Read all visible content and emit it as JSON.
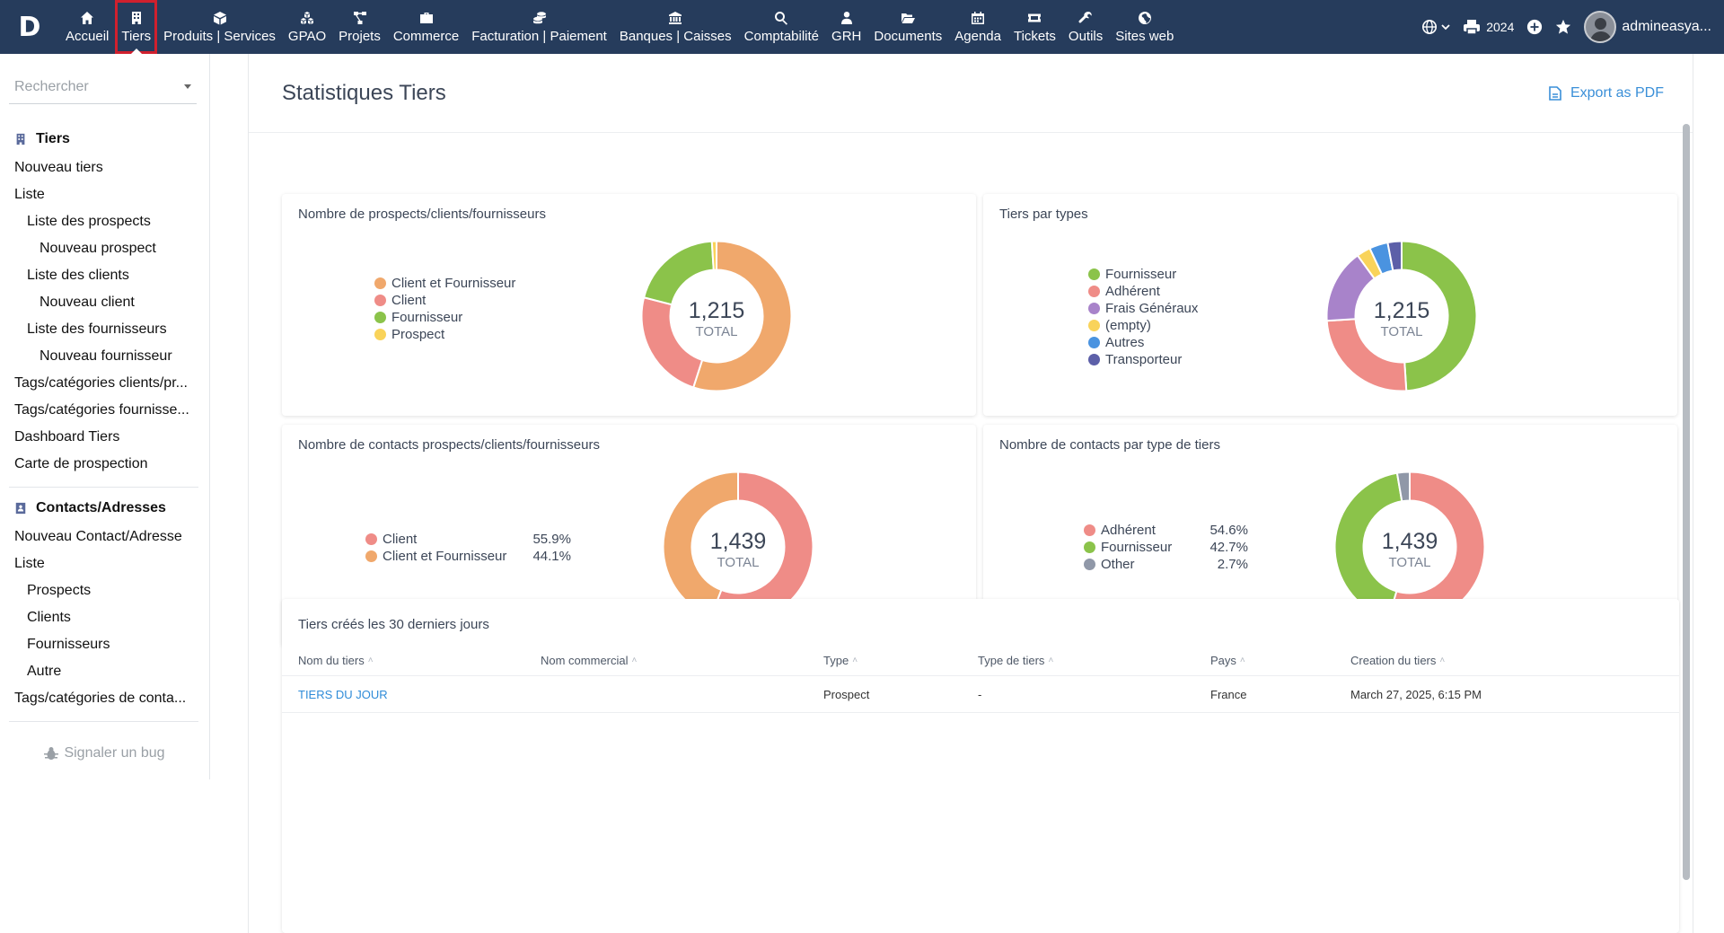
{
  "topbar": {
    "logo": "D",
    "menu": [
      {
        "label": "Accueil",
        "icon": "home-icon"
      },
      {
        "label": "Tiers",
        "icon": "building-icon"
      },
      {
        "label": "Produits | Services",
        "icon": "cube-icon"
      },
      {
        "label": "GPAO",
        "icon": "cubes-icon"
      },
      {
        "label": "Projets",
        "icon": "project-diagram-icon"
      },
      {
        "label": "Commerce",
        "icon": "suitcase-icon"
      },
      {
        "label": "Facturation | Paiement",
        "icon": "coins-icon"
      },
      {
        "label": "Banques | Caisses",
        "icon": "bank-icon"
      },
      {
        "label": "Comptabilité",
        "icon": "search-dollar-icon"
      },
      {
        "label": "GRH",
        "icon": "user-tie-icon"
      },
      {
        "label": "Documents",
        "icon": "folder-open-icon"
      },
      {
        "label": "Agenda",
        "icon": "calendar-icon"
      },
      {
        "label": "Tickets",
        "icon": "ticket-icon"
      },
      {
        "label": "Outils",
        "icon": "wrench-icon"
      },
      {
        "label": "Sites web",
        "icon": "globe-icon"
      }
    ],
    "active_index": 1,
    "year": "2024",
    "username": "admineasya..."
  },
  "sidebar": {
    "search_placeholder": "Rechercher",
    "sections": [
      {
        "title": "Tiers",
        "icon": "building-icon",
        "items": [
          {
            "label": "Nouveau tiers",
            "level": 1
          },
          {
            "label": "Liste",
            "level": 1
          },
          {
            "label": "Liste des prospects",
            "level": 2
          },
          {
            "label": "Nouveau prospect",
            "level": 3
          },
          {
            "label": "Liste des clients",
            "level": 2
          },
          {
            "label": "Nouveau client",
            "level": 3
          },
          {
            "label": "Liste des fournisseurs",
            "level": 2
          },
          {
            "label": "Nouveau fournisseur",
            "level": 3
          },
          {
            "label": "Tags/catégories clients/pr...",
            "level": 1
          },
          {
            "label": "Tags/catégories fournisse...",
            "level": 1
          },
          {
            "label": "Dashboard Tiers",
            "level": 1
          },
          {
            "label": "Carte de prospection",
            "level": 1
          }
        ]
      },
      {
        "title": "Contacts/Adresses",
        "icon": "address-card-icon",
        "items": [
          {
            "label": "Nouveau Contact/Adresse",
            "level": 1
          },
          {
            "label": "Liste",
            "level": 1
          },
          {
            "label": "Prospects",
            "level": 2
          },
          {
            "label": "Clients",
            "level": 2
          },
          {
            "label": "Fournisseurs",
            "level": 2
          },
          {
            "label": "Autre",
            "level": 2
          },
          {
            "label": "Tags/catégories de conta...",
            "level": 1
          }
        ]
      }
    ],
    "bug_label": "Signaler un bug"
  },
  "main": {
    "title": "Statistiques Tiers",
    "export_label": "Export as PDF",
    "total_label": "TOTAL"
  },
  "chart_data": [
    {
      "type": "pie",
      "title": "Nombre de prospects/clients/fournisseurs",
      "total": "1,215",
      "series": [
        {
          "name": "Client et Fournisseur",
          "value": 0.55,
          "color": "#f0a86c"
        },
        {
          "name": "Client",
          "value": 0.24,
          "color": "#ef8c87"
        },
        {
          "name": "Fournisseur",
          "value": 0.2,
          "color": "#8bc34a"
        },
        {
          "name": "Prospect",
          "value": 0.01,
          "color": "#f9d35a"
        }
      ]
    },
    {
      "type": "pie",
      "title": "Tiers par types",
      "total": "1,215",
      "series": [
        {
          "name": "Fournisseur",
          "value": 0.49,
          "color": "#8bc34a"
        },
        {
          "name": "Adhérent",
          "value": 0.25,
          "color": "#ef8c87"
        },
        {
          "name": "Frais Généraux",
          "value": 0.16,
          "color": "#a883ca"
        },
        {
          "name": "(empty)",
          "value": 0.03,
          "color": "#f9d35a"
        },
        {
          "name": "Autres",
          "value": 0.04,
          "color": "#4a93e0"
        },
        {
          "name": "Transporteur",
          "value": 0.03,
          "color": "#5c5fa8"
        }
      ]
    },
    {
      "type": "pie",
      "title": "Nombre de contacts prospects/clients/fournisseurs",
      "total": "1,439",
      "series": [
        {
          "name": "Client",
          "value": 55.9,
          "label": "55.9%",
          "color": "#ef8c87"
        },
        {
          "name": "Client et Fournisseur",
          "value": 44.1,
          "label": "44.1%",
          "color": "#f0a86c"
        }
      ]
    },
    {
      "type": "pie",
      "title": "Nombre de contacts par type de tiers",
      "total": "1,439",
      "series": [
        {
          "name": "Adhérent",
          "value": 54.6,
          "label": "54.6%",
          "color": "#ef8c87"
        },
        {
          "name": "Fournisseur",
          "value": 42.7,
          "label": "42.7%",
          "color": "#8bc34a"
        },
        {
          "name": "Other",
          "value": 2.7,
          "label": "2.7%",
          "color": "#9098a8"
        }
      ]
    }
  ],
  "table": {
    "title": "Tiers créés les 30 derniers jours",
    "columns": [
      "Nom du tiers",
      "Nom commercial",
      "Type",
      "Type de tiers",
      "Pays",
      "Creation du tiers"
    ],
    "rows": [
      [
        "TIERS DU JOUR",
        "",
        "Prospect",
        "-",
        "France",
        "March 27, 2025, 6:15 PM"
      ]
    ]
  }
}
